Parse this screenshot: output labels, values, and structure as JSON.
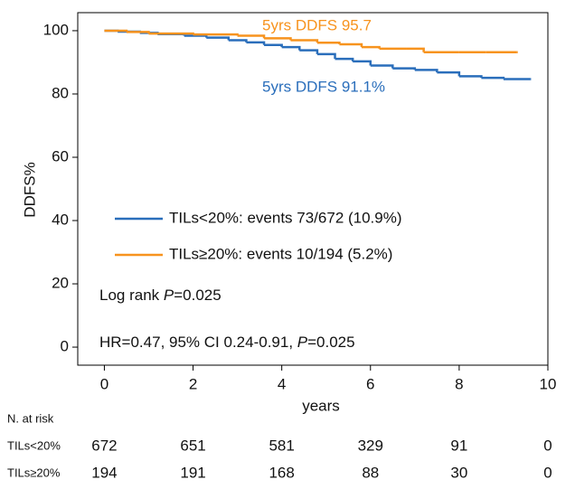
{
  "chart_data": {
    "type": "step",
    "ylabel": "DDFS%",
    "xlabel": "years",
    "xlim": [
      -0.6,
      10.0
    ],
    "xticks": [
      0,
      2,
      4,
      6,
      8,
      10
    ],
    "ylim": [
      -5.7,
      105.7
    ],
    "yticks": [
      0,
      20,
      40,
      60,
      80,
      100
    ],
    "series": [
      {
        "name": "TILs<20%: events 73/672 (10.9%)",
        "color": "#2a6ebb",
        "x": [
          0,
          0.3,
          0.8,
          1.2,
          1.8,
          2.3,
          2.8,
          3.2,
          3.6,
          4.0,
          4.4,
          4.8,
          5.2,
          5.6,
          6.0,
          6.5,
          7.0,
          7.5,
          8.0,
          8.5,
          9.0,
          9.6
        ],
        "values": [
          100,
          99.7,
          99.3,
          98.9,
          98.4,
          97.8,
          97.0,
          96.3,
          95.5,
          94.8,
          93.8,
          92.6,
          91.1,
          90.3,
          89.0,
          88.1,
          87.6,
          86.8,
          85.6,
          85.1,
          84.7,
          84.7
        ]
      },
      {
        "name": "TILs≥20%: events 10/194 (5.2%)",
        "color": "#f7931e",
        "x": [
          0,
          0.5,
          1.0,
          2.0,
          3.0,
          3.6,
          4.2,
          4.8,
          5.3,
          5.8,
          6.2,
          6.8,
          7.2,
          8.0,
          8.6,
          9.3
        ],
        "values": [
          100,
          99.6,
          99.1,
          98.8,
          98.4,
          97.6,
          97.0,
          96.2,
          95.7,
          94.8,
          94.3,
          94.3,
          93.2,
          93.2,
          93.2,
          93.2
        ]
      }
    ],
    "annotations": [
      "5yrs DDFS 95.7",
      "5yrs DDFS 91.1%"
    ],
    "stats_text": [
      [
        "Log rank ",
        "P",
        "=0.025"
      ],
      [
        "HR=0.47, 95% CI 0.24-0.91, ",
        "P",
        "=0.025"
      ]
    ],
    "risk_table": {
      "title": "N. at risk",
      "rows": [
        {
          "label": "TILs<20%",
          "counts": [
            "672",
            "651",
            "581",
            "329",
            "91",
            "0"
          ]
        },
        {
          "label": "TILs≥20%",
          "counts": [
            "194",
            "191",
            "168",
            "88",
            "30",
            "0"
          ]
        }
      ]
    }
  }
}
